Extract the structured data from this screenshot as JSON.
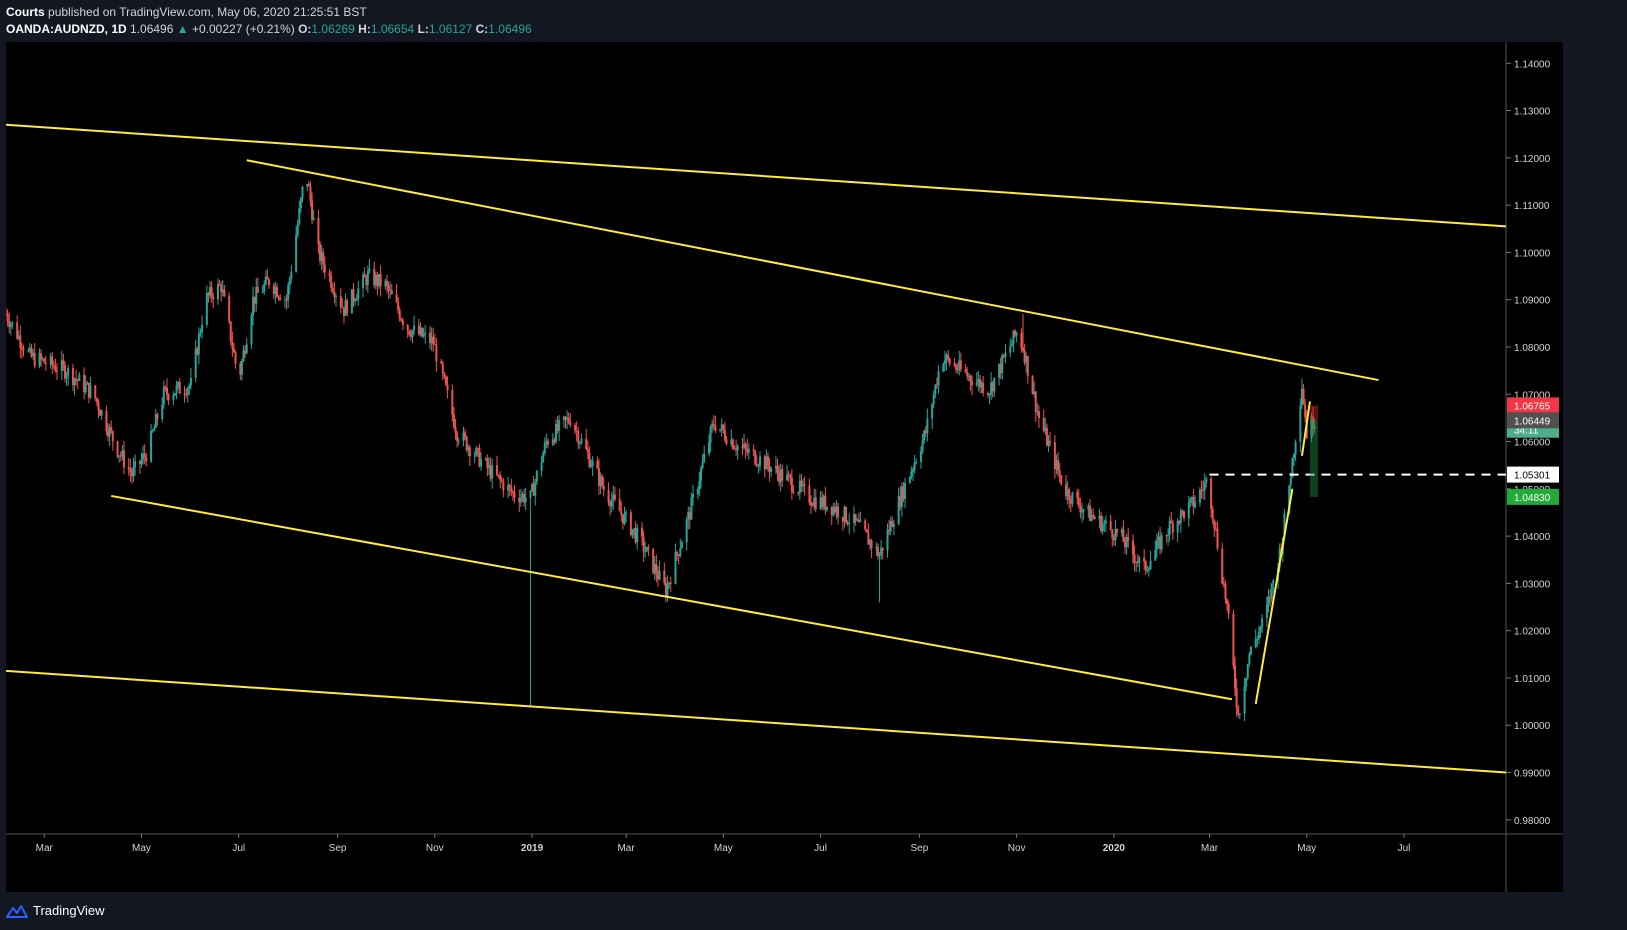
{
  "header": {
    "author": "Courts",
    "published": "published on TradingView.com, May 06, 2020 21:25:51 BST",
    "symbol": "OANDA:AUDNZD, 1D",
    "last": "1.06496",
    "arrow": "▲",
    "change": "+0.00227 (+0.21%)",
    "o_label": "O:",
    "o_value": "1.06269",
    "h_label": "H:",
    "h_value": "1.06654",
    "l_label": "L:",
    "l_value": "1.06127",
    "c_label": "C:",
    "c_value": "1.06496"
  },
  "footer": {
    "brand": "TradingView",
    "logo_icon": "tradingview-logo-icon"
  },
  "colors": {
    "up": "#26a69a",
    "down": "#ef5350",
    "trendline": "#ffeb3b",
    "background": "#000000",
    "axis_text": "#d1d4dc"
  },
  "chart_data": {
    "type": "candlestick",
    "symbol": "OANDA:AUDNZD",
    "timeframe": "1D",
    "x_tick_labels": [
      "Mar",
      "May",
      "Jul",
      "Sep",
      "Nov",
      "2019",
      "Mar",
      "May",
      "Jul",
      "Sep",
      "Nov",
      "2020",
      "Mar",
      "May",
      "Jul"
    ],
    "y_tick_labels": [
      "1.14000",
      "1.13000",
      "1.12000",
      "1.11000",
      "1.10000",
      "1.09000",
      "1.08000",
      "1.07000",
      "1.06000",
      "1.05000",
      "1.04000",
      "1.03000",
      "1.02000",
      "1.01000",
      "1.00000",
      "0.99000",
      "0.98000"
    ],
    "ylim": [
      0.977,
      1.1445
    ],
    "x_range": [
      "2018-02-05",
      "2020-09-03"
    ],
    "price_key_points": [
      [
        "2018-02-05",
        1.087
      ],
      [
        "2018-02-20",
        1.078
      ],
      [
        "2018-03-15",
        1.075
      ],
      [
        "2018-04-01",
        1.07
      ],
      [
        "2018-04-15",
        1.059
      ],
      [
        "2018-04-25",
        1.053
      ],
      [
        "2018-05-05",
        1.058
      ],
      [
        "2018-05-15",
        1.07
      ],
      [
        "2018-06-01",
        1.072
      ],
      [
        "2018-06-10",
        1.09
      ],
      [
        "2018-06-20",
        1.093
      ],
      [
        "2018-07-01",
        1.073
      ],
      [
        "2018-07-10",
        1.09
      ],
      [
        "2018-07-20",
        1.094
      ],
      [
        "2018-07-31",
        1.09
      ],
      [
        "2018-08-12",
        1.1175
      ],
      [
        "2018-08-20",
        1.1
      ],
      [
        "2018-09-05",
        1.088
      ],
      [
        "2018-09-20",
        1.095
      ],
      [
        "2018-10-01",
        1.093
      ],
      [
        "2018-10-15",
        1.084
      ],
      [
        "2018-10-31",
        1.081
      ],
      [
        "2018-11-15",
        1.062
      ],
      [
        "2018-12-05",
        1.054
      ],
      [
        "2018-12-20",
        1.049
      ],
      [
        "2018-12-31",
        1.048
      ],
      [
        "2019-01-10",
        1.06
      ],
      [
        "2019-01-25",
        1.065
      ],
      [
        "2019-02-15",
        1.05
      ],
      [
        "2019-03-10",
        1.039
      ],
      [
        "2019-03-26",
        1.0285
      ],
      [
        "2019-04-10",
        1.045
      ],
      [
        "2019-04-25",
        1.064
      ],
      [
        "2019-05-10",
        1.059
      ],
      [
        "2019-05-25",
        1.056
      ],
      [
        "2019-06-10",
        1.052
      ],
      [
        "2019-06-25",
        1.048
      ],
      [
        "2019-07-10",
        1.046
      ],
      [
        "2019-07-25",
        1.042
      ],
      [
        "2019-08-07",
        1.036
      ],
      [
        "2019-08-20",
        1.048
      ],
      [
        "2019-09-05",
        1.062
      ],
      [
        "2019-09-15",
        1.078
      ],
      [
        "2019-10-01",
        1.074
      ],
      [
        "2019-10-15",
        1.071
      ],
      [
        "2019-11-01",
        1.083
      ],
      [
        "2019-11-05",
        1.08
      ],
      [
        "2019-11-15",
        1.065
      ],
      [
        "2019-12-01",
        1.05
      ],
      [
        "2019-12-15",
        1.045
      ],
      [
        "2020-01-05",
        1.04
      ],
      [
        "2020-01-20",
        1.033
      ],
      [
        "2020-02-05",
        1.042
      ],
      [
        "2020-02-20",
        1.047
      ],
      [
        "2020-02-29",
        1.052
      ],
      [
        "2020-03-12",
        1.025
      ],
      [
        "2020-03-19",
        1.002
      ],
      [
        "2020-03-26",
        1.015
      ],
      [
        "2020-04-05",
        1.023
      ],
      [
        "2020-04-15",
        1.038
      ],
      [
        "2020-04-22",
        1.056
      ],
      [
        "2020-04-28",
        1.072
      ],
      [
        "2020-05-01",
        1.062
      ],
      [
        "2020-05-06",
        1.06496
      ]
    ],
    "spikes": [
      {
        "date": "2018-12-31",
        "low": 1.004
      },
      {
        "date": "2019-08-07",
        "low": 1.026
      },
      {
        "date": "2019-11-05",
        "high": 1.087
      }
    ],
    "trendlines": [
      {
        "name": "upper-channel",
        "from": [
          "2018-02-05",
          1.127
        ],
        "to": [
          "2020-09-03",
          1.1055
        ]
      },
      {
        "name": "descending-resistance",
        "from": [
          "2018-07-06",
          1.1195
        ],
        "to": [
          "2020-06-15",
          1.073
        ]
      },
      {
        "name": "descending-support",
        "from": [
          "2018-04-12",
          1.0485
        ],
        "to": [
          "2020-03-15",
          1.0055
        ]
      },
      {
        "name": "lower-channel",
        "from": [
          "2018-02-05",
          1.0115
        ],
        "to": [
          "2020-09-03",
          0.99
        ]
      },
      {
        "name": "steep-support",
        "from": [
          "2020-03-30",
          1.0045
        ],
        "to": [
          "2020-04-22",
          1.05
        ]
      },
      {
        "name": "short-rising",
        "from": [
          "2020-04-28",
          1.057
        ],
        "to": [
          "2020-05-03",
          1.0685
        ]
      }
    ],
    "horizontal_line": {
      "from": "2020-03-01",
      "value": 1.05301,
      "style": "dashed"
    },
    "position_box": {
      "from": "2020-05-03",
      "to": "2020-05-06",
      "entry": 1.06449,
      "target": 1.0483,
      "stop": 1.06765
    },
    "price_labels": [
      {
        "text": "1.06765",
        "value": 1.06765,
        "color": "#f23645"
      },
      {
        "text": "34:11",
        "value": 1.0625,
        "color": "#4caf8a"
      },
      {
        "text": "1.06449",
        "value": 1.06449,
        "color": "#505050"
      },
      {
        "text": "1.05301",
        "value": 1.05301,
        "color": "#ffffff"
      },
      {
        "text": "1.04830",
        "value": 1.0483,
        "color": "#22ab36"
      }
    ]
  }
}
